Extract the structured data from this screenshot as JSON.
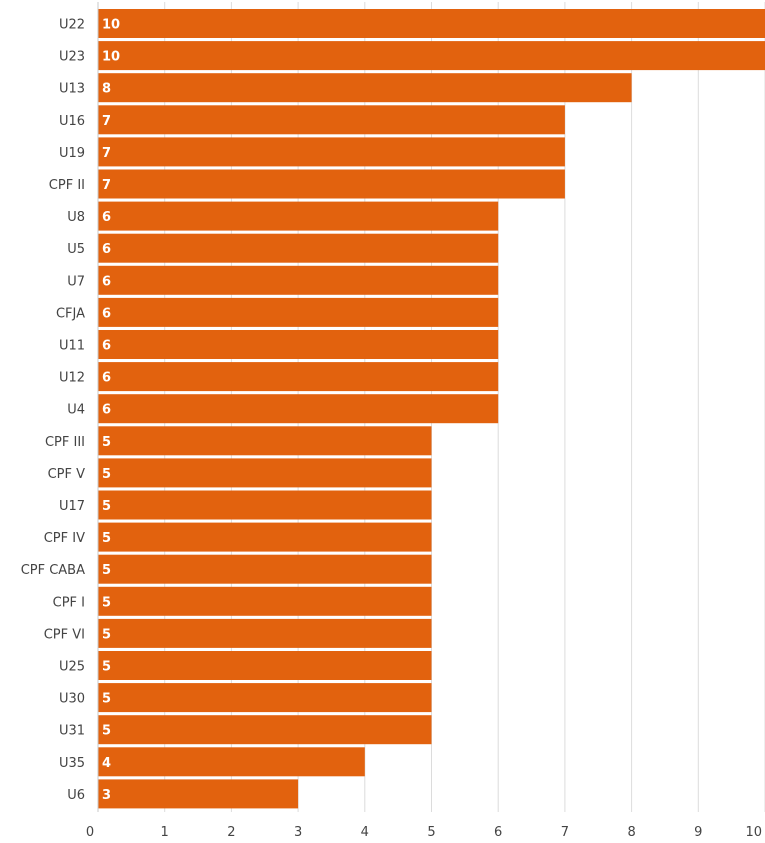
{
  "chart_data": {
    "type": "bar",
    "orientation": "horizontal",
    "categories": [
      "U22",
      "U23",
      "U13",
      "U16",
      "U19",
      "CPF II",
      "U8",
      "U5",
      "U7",
      "CFJA",
      "U11",
      "U12",
      "U4",
      "CPF III",
      "CPF V",
      "U17",
      "CPF IV",
      "CPF CABA",
      "CPF I",
      "CPF VI",
      "U25",
      "U30",
      "U31",
      "U35",
      "U6"
    ],
    "values": [
      10,
      10,
      8,
      7,
      7,
      7,
      6,
      6,
      6,
      6,
      6,
      6,
      6,
      5,
      5,
      5,
      5,
      5,
      5,
      5,
      5,
      5,
      5,
      4,
      3
    ],
    "data_labels": [
      "10",
      "10",
      "8",
      "7",
      "7",
      "7",
      "6",
      "6",
      "6",
      "6",
      "6",
      "6",
      "6",
      "5",
      "5",
      "5",
      "5",
      "5",
      "5",
      "5",
      "5",
      "5",
      "5",
      "4",
      "3"
    ],
    "x_ticks": [
      "0",
      "1",
      "2",
      "3",
      "4",
      "5",
      "6",
      "7",
      "8",
      "9",
      "10"
    ],
    "xlim": [
      0,
      10
    ],
    "grid": true,
    "bar_color": "#e2620e",
    "title": "",
    "xlabel": "",
    "ylabel": ""
  }
}
